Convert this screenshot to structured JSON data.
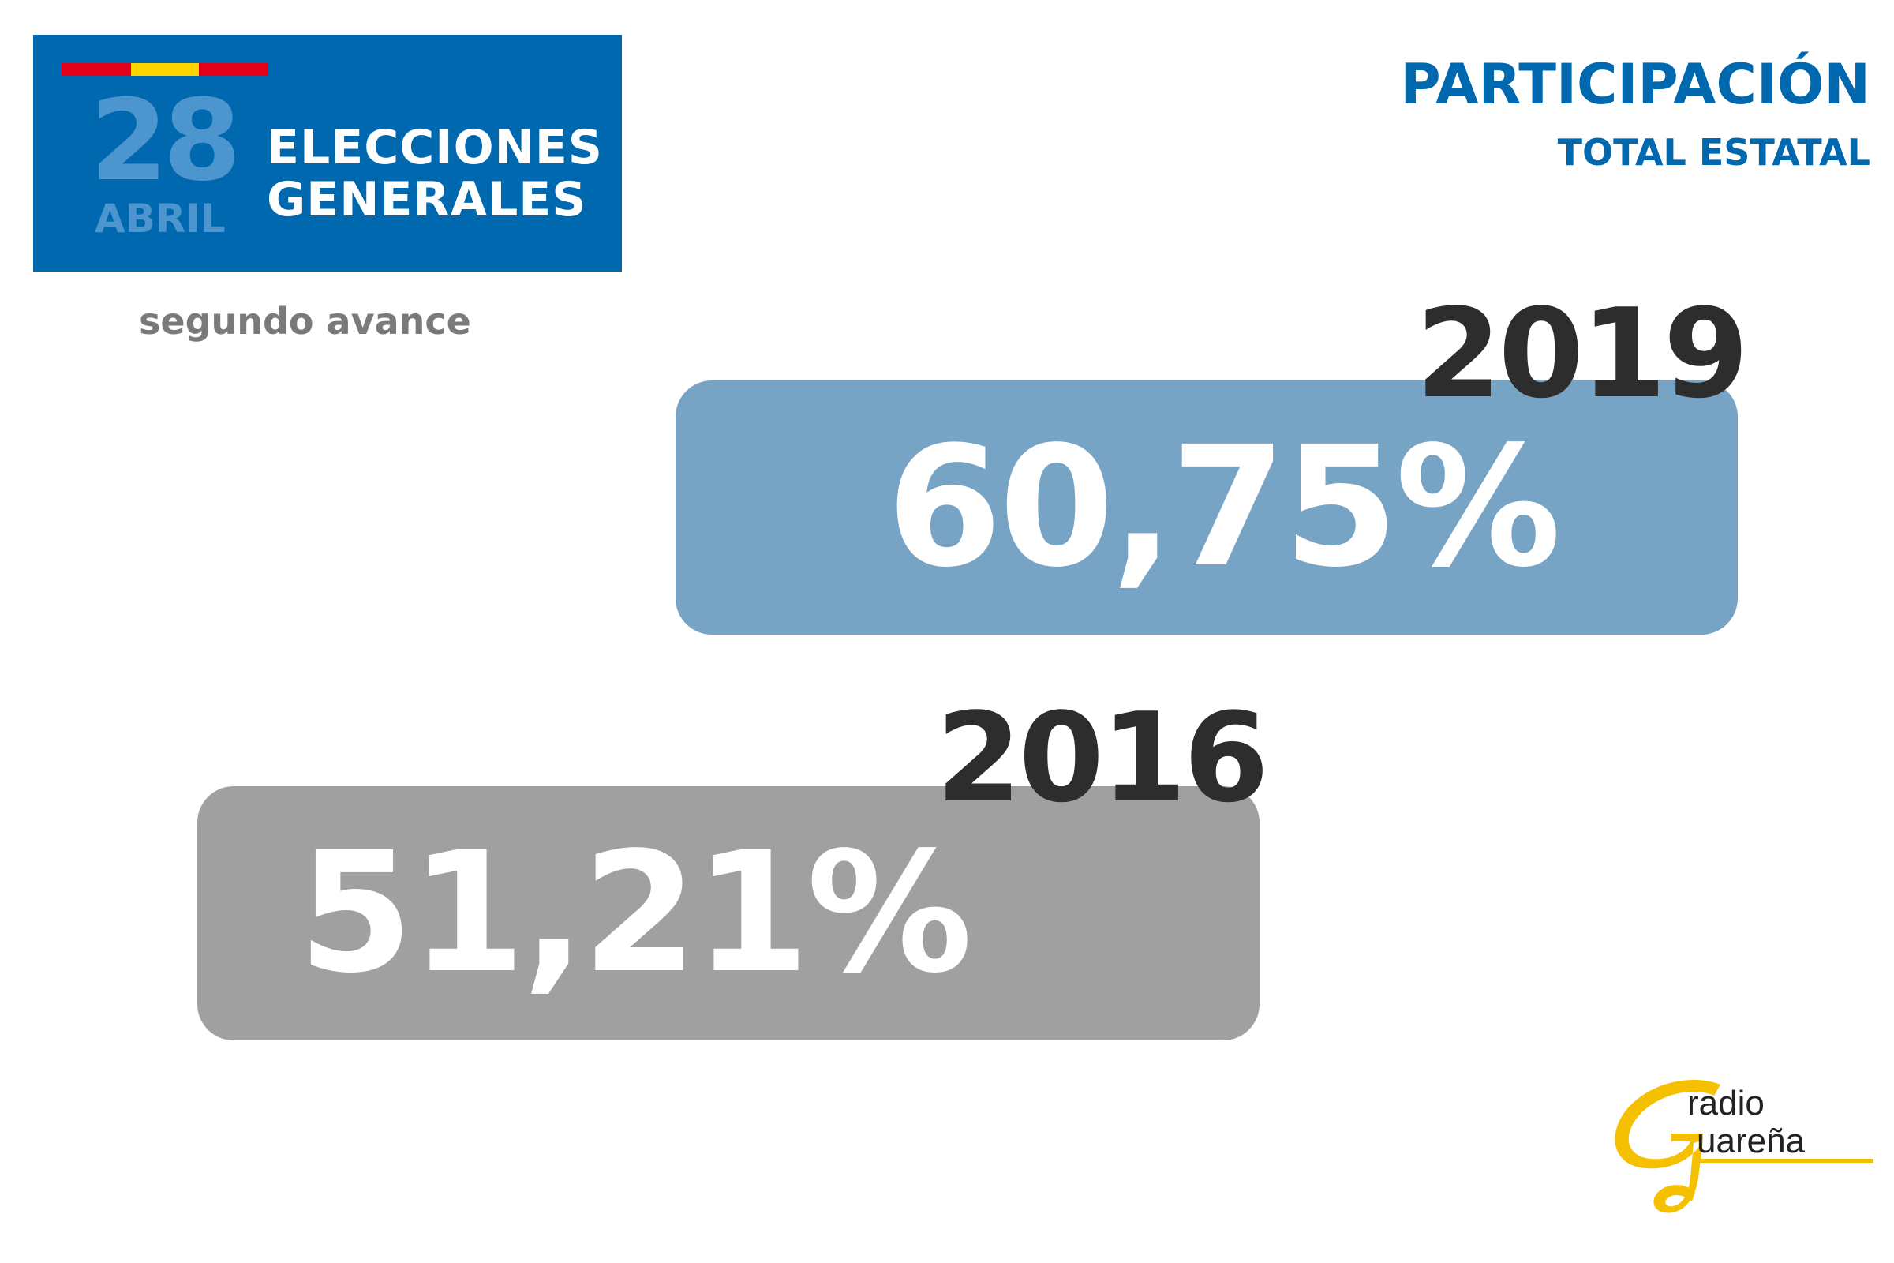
{
  "header": {
    "day": "28",
    "month": "ABRIL",
    "title_line1": "ELECCIONES",
    "title_line2": "GENERALES",
    "flag_colors": [
      "#e3001b",
      "#ffd500",
      "#e3001b"
    ],
    "background_color": "#0068ae"
  },
  "subtitle": "segundo avance",
  "title": {
    "main": "PARTICIPACIÓN",
    "sub": "TOTAL ESTATAL"
  },
  "chart_data": {
    "type": "bar",
    "orientation": "horizontal",
    "title": "PARTICIPACIÓN",
    "subtitle": "TOTAL ESTATAL",
    "categories": [
      "2019",
      "2016"
    ],
    "values": [
      60.75,
      51.21
    ],
    "value_labels": [
      "60,75%",
      "51,21%"
    ],
    "unit": "%",
    "colors": [
      "#77a4c5",
      "#a0a0a0"
    ],
    "grid": false,
    "legend": "none"
  },
  "logo": {
    "line1": "radio",
    "line2": "uareña",
    "color": "#f5c000"
  }
}
